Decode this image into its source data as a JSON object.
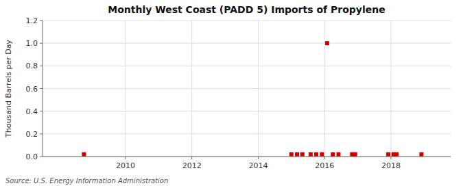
{
  "chart_data": {
    "type": "scatter",
    "title": "Monthly West Coast (PADD 5) Imports of Propylene",
    "ylabel": "Thousand Barrels per Day",
    "source": "Source: U.S. Energy Information Administration",
    "color": "#cc0000",
    "marker": "square",
    "grid": true,
    "x": [
      2008.75,
      2015.0,
      2015.17,
      2015.33,
      2015.58,
      2015.75,
      2015.92,
      2016.08,
      2016.25,
      2016.42,
      2016.83,
      2016.92,
      2017.92,
      2018.08,
      2018.17,
      2018.92
    ],
    "values": [
      0.02,
      0.02,
      0.02,
      0.02,
      0.02,
      0.02,
      0.02,
      1.0,
      0.02,
      0.02,
      0.02,
      0.02,
      0.02,
      0.02,
      0.02,
      0.02
    ],
    "xlim": [
      2007.5,
      2019.8
    ],
    "ylim": [
      0,
      1.2
    ],
    "xticks": [
      2010,
      2012,
      2014,
      2016,
      2018
    ],
    "yticks": [
      {
        "value": 0.0,
        "label": "0.0"
      },
      0.2,
      0.4,
      0.6,
      0.8,
      {
        "value": 1.0,
        "label": "1.0"
      },
      1.2
    ]
  }
}
